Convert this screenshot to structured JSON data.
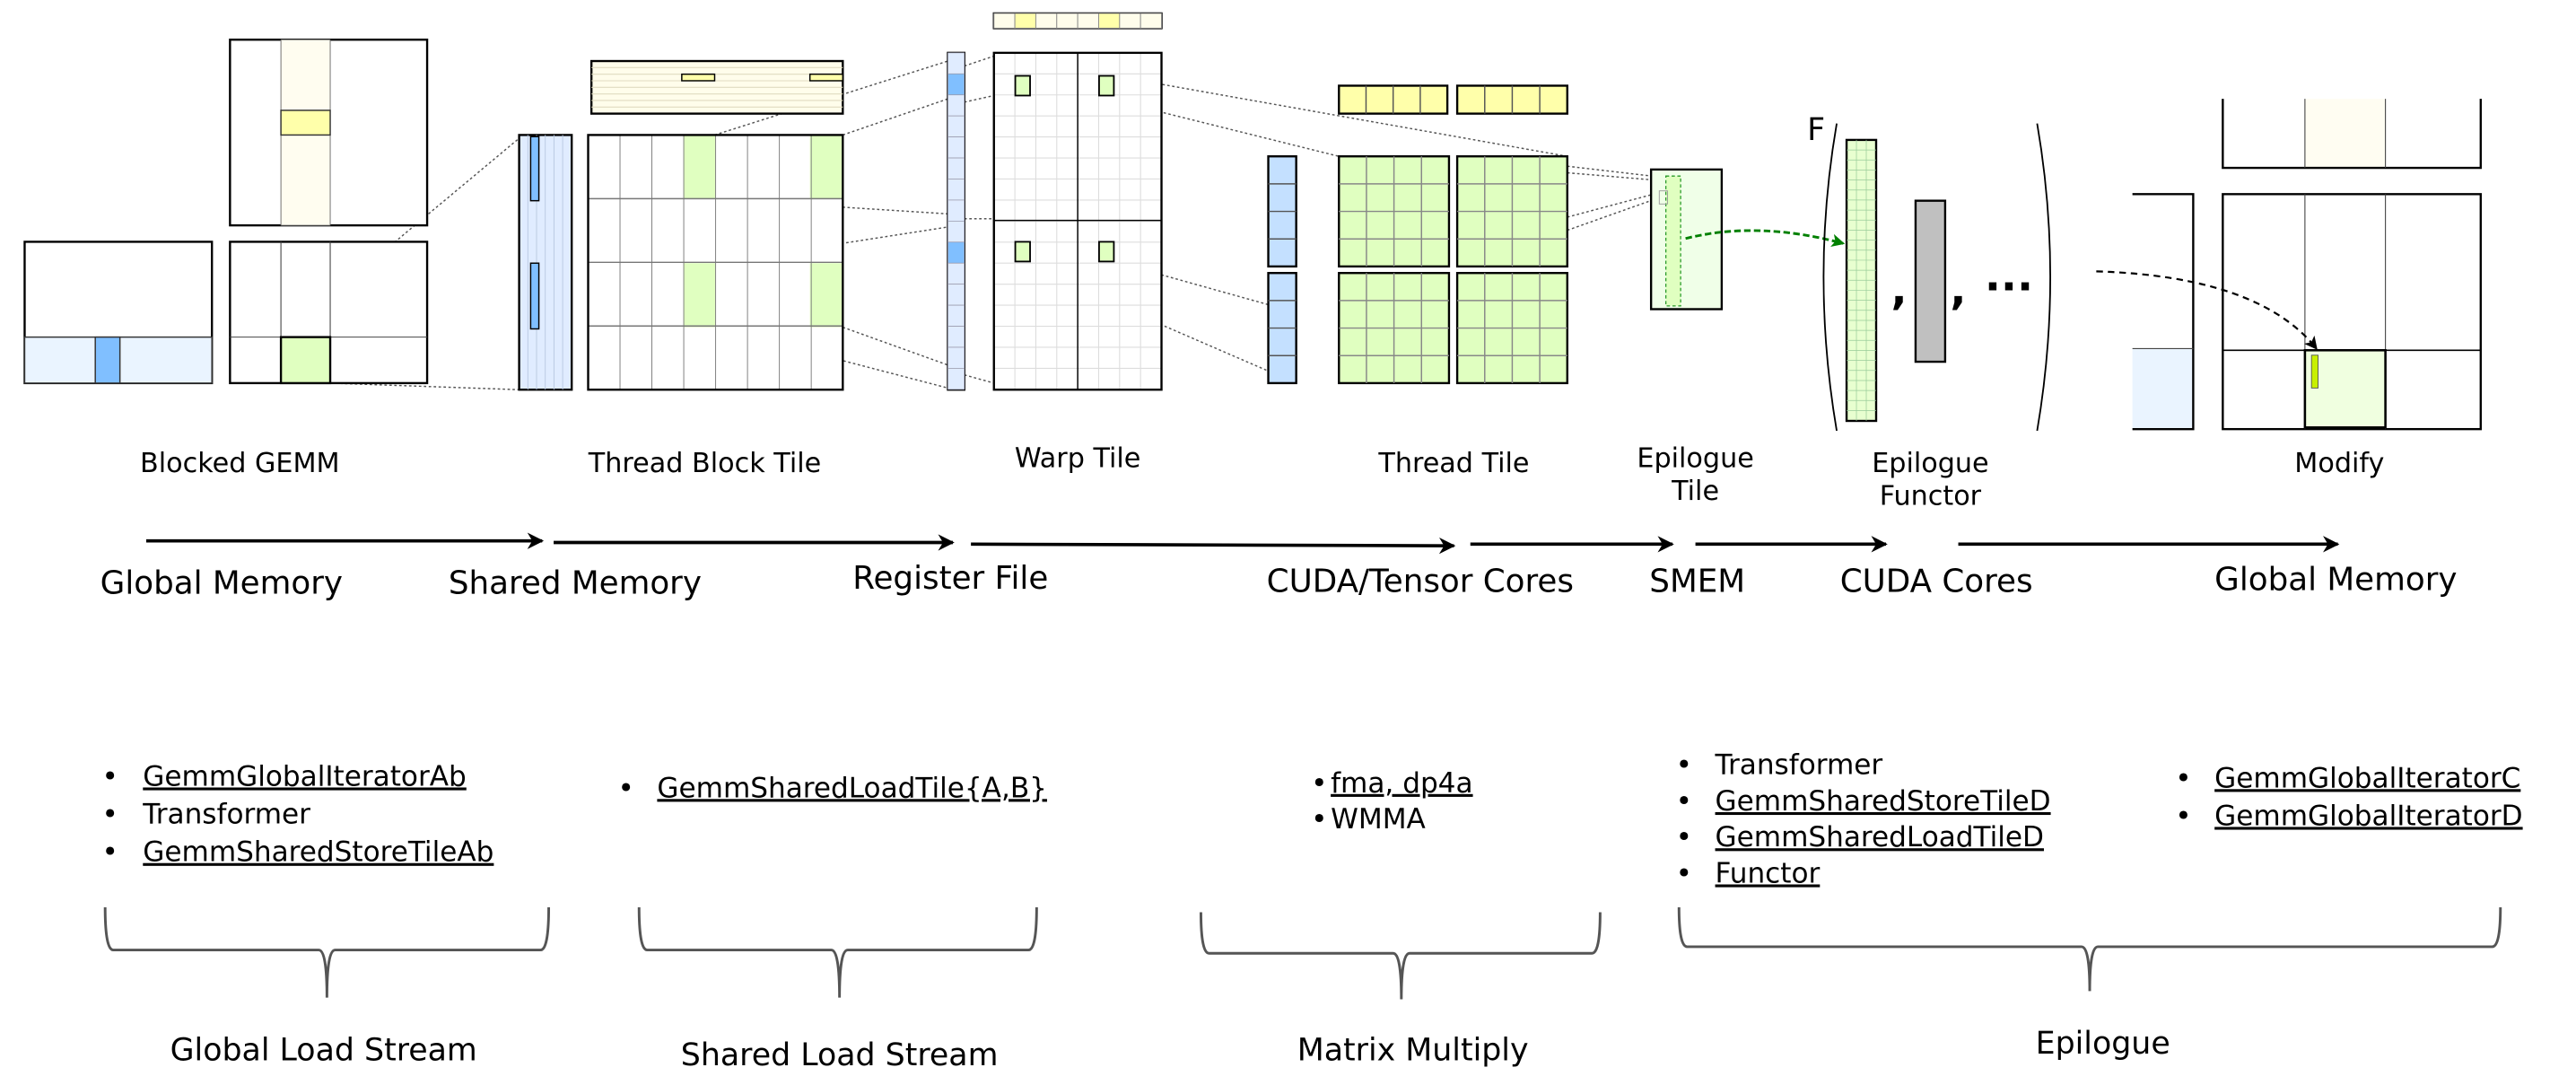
{
  "colors": {
    "a_operand_light": "#e8f2ff",
    "a_operand_dark": "#80bfff",
    "b_operand_light": "#fffef2",
    "b_operand_dark": "#ffffaa",
    "accumulator": "#e0ffc0",
    "epilogue_tile": "#f0ffe8",
    "functor_operand": "#c0c0c0",
    "modify_highlight": "#c8f000",
    "data_flow_arrow": "#008000"
  },
  "stages": {
    "blocked_gemm": "Blocked GEMM",
    "thread_block_tile": "Thread Block Tile",
    "warp_tile": "Warp Tile",
    "thread_tile": "Thread Tile",
    "epilogue_tile": [
      "Epilogue",
      "Tile"
    ],
    "epilogue_functor": [
      "Epilogue",
      "Functor"
    ],
    "modify": "Modify"
  },
  "functor": {
    "symbol": "F",
    "separator": ",",
    "ellipsis": "···"
  },
  "memory": [
    "Global Memory",
    "Shared Memory",
    "Register File",
    "CUDA/Tensor Cores",
    "SMEM",
    "CUDA Cores",
    "Global Memory"
  ],
  "bullet_groups": [
    {
      "items": [
        "GemmGlobalIteratorAb",
        "Transformer",
        "GemmSharedStoreTileAb"
      ]
    },
    {
      "items": [
        "GemmSharedLoadTile{A,B}"
      ]
    },
    {
      "items": [
        "fma, dp4a",
        "WMMA"
      ]
    },
    {
      "items": [
        "Transformer",
        "GemmSharedStoreTileD",
        "GemmSharedLoadTileD",
        "Functor"
      ]
    },
    {
      "items": [
        "GemmGlobalIteratorC",
        "GemmGlobalIteratorD"
      ]
    }
  ],
  "streams": [
    "Global Load Stream",
    "Shared Load Stream",
    "Matrix Multiply",
    "Epilogue"
  ]
}
